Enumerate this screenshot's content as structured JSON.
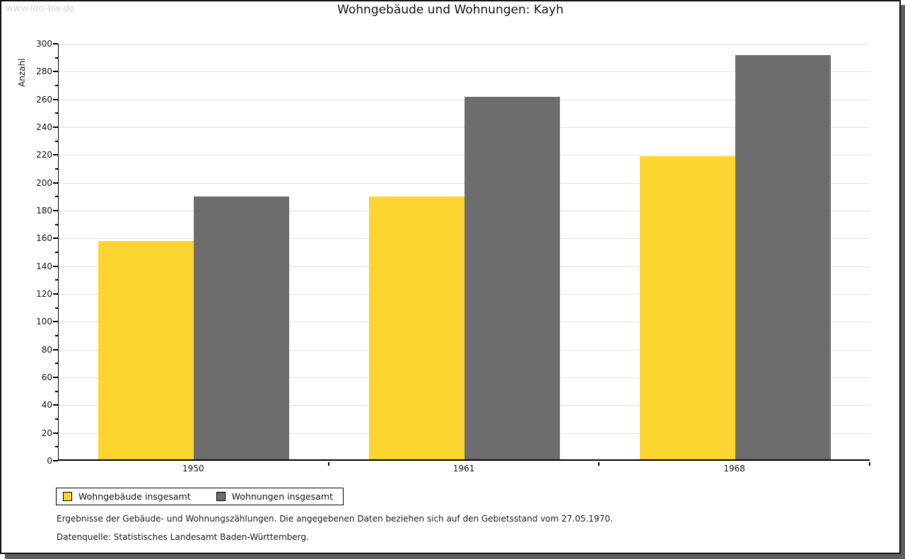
{
  "watermark": "www.leo-bw.de",
  "title": "Wohngebäude und Wohnungen: Kayh",
  "chart_data": {
    "type": "bar",
    "title": "Wohngebäude und Wohnungen: Kayh",
    "categories": [
      "1950",
      "1961",
      "1968"
    ],
    "series": [
      {
        "name": "Wohngebäude insgesamt",
        "color": "#FDD530",
        "values": [
          157,
          189,
          218
        ]
      },
      {
        "name": "Wohnungen insgesamt",
        "color": "#6D6D6D",
        "values": [
          189,
          261,
          291
        ]
      }
    ],
    "xlabel": "",
    "ylabel": "Anzahl",
    "ylim": [
      0,
      300
    ],
    "ytick_step": 20,
    "ytick_minor_step": 10,
    "grid": true,
    "legend_position": "bottom-left"
  },
  "footnotes": [
    "Ergebnisse der Gebäude- und Wohnungszählungen. Die angegebenen Daten beziehen sich auf den Gebietsstand vom 27.05.1970.",
    "Datenquelle: Statistisches Landesamt Baden-Württemberg."
  ],
  "colors": {
    "bar_yellow": "#FDD530",
    "bar_gray": "#6D6D6D",
    "gridline": "#e2e2e2",
    "watermark": "#d6d6d6",
    "frame_border": "#111111",
    "shadow": "#5e5e5e"
  }
}
